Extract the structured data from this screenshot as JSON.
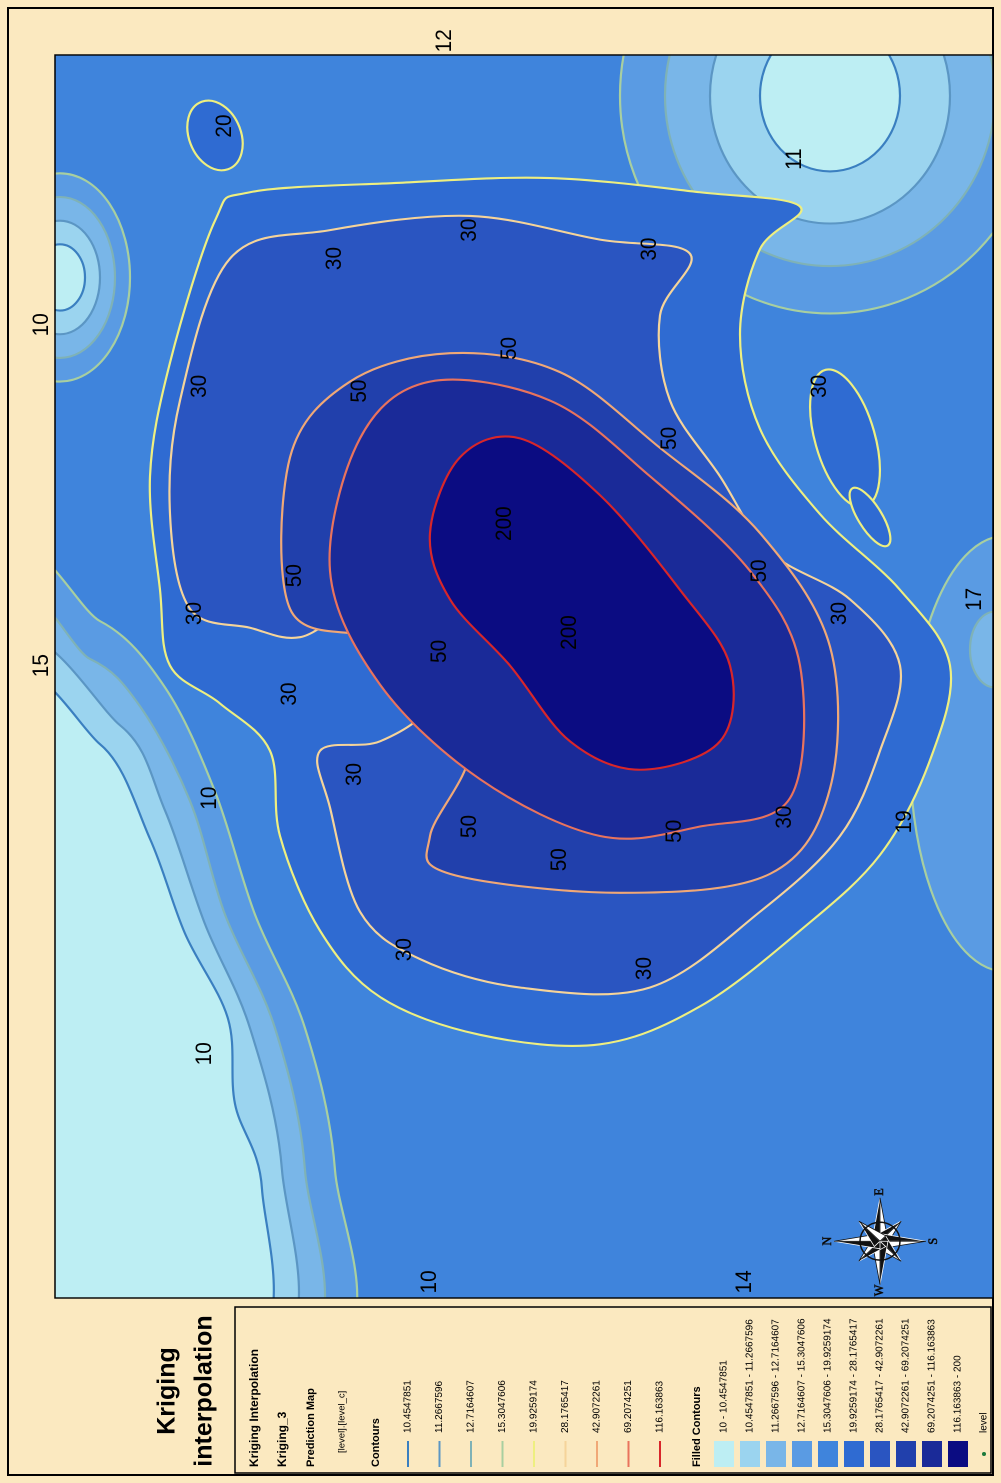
{
  "title": [
    "Kriging",
    "interpolation"
  ],
  "legend": {
    "heading": "Kriging Interpolation",
    "layer": "Kriging_3",
    "subheading": "Prediction Map",
    "field": "[level].[level_c]",
    "contours_title": "Contours",
    "contours": [
      {
        "label": "10.4547851",
        "color": "#3a7fc0"
      },
      {
        "label": "11.2667596",
        "color": "#5b96c4"
      },
      {
        "label": "12.7164607",
        "color": "#7fb2b6"
      },
      {
        "label": "15.3047606",
        "color": "#a8cfa0"
      },
      {
        "label": "19.9259174",
        "color": "#eeef80"
      },
      {
        "label": "28.1765417",
        "color": "#f5d49a"
      },
      {
        "label": "42.9072261",
        "color": "#f0a877"
      },
      {
        "label": "69.2074251",
        "color": "#e9735d"
      },
      {
        "label": "116.163863",
        "color": "#d8262a"
      }
    ],
    "filled_title": "Filled Contours",
    "filled": [
      {
        "label": "10 - 10.4547851",
        "color": "#bdeef3"
      },
      {
        "label": "10.4547851 - 11.2667596",
        "color": "#9bd4ef"
      },
      {
        "label": "11.2667596 - 12.7164607",
        "color": "#79b6e8"
      },
      {
        "label": "12.7164607 - 15.3047606",
        "color": "#5a9be3"
      },
      {
        "label": "15.3047606 - 19.9259174",
        "color": "#3f84dc"
      },
      {
        "label": "19.9259174 - 28.1765417",
        "color": "#2f6bd2"
      },
      {
        "label": "28.1765417 - 42.9072261",
        "color": "#2a55c1"
      },
      {
        "label": "42.9072261 - 69.2074251",
        "color": "#2140ac"
      },
      {
        "label": "69.2074251 - 116.163863",
        "color": "#1a2a98"
      },
      {
        "label": "116.163863 - 200",
        "color": "#0b0c82"
      }
    ],
    "points_label": "level"
  },
  "map": {
    "labels": [
      "12",
      "20",
      "11",
      "30",
      "30",
      "30",
      "30",
      "50",
      "50",
      "30",
      "50",
      "200",
      "50",
      "30",
      "50",
      "200",
      "50",
      "30",
      "30",
      "30",
      "50",
      "50",
      "50",
      "30",
      "19",
      "10",
      "30",
      "30",
      "10",
      "10",
      "14",
      "10",
      "15",
      "17"
    ],
    "compass": [
      "N",
      "E",
      "S",
      "W"
    ]
  }
}
